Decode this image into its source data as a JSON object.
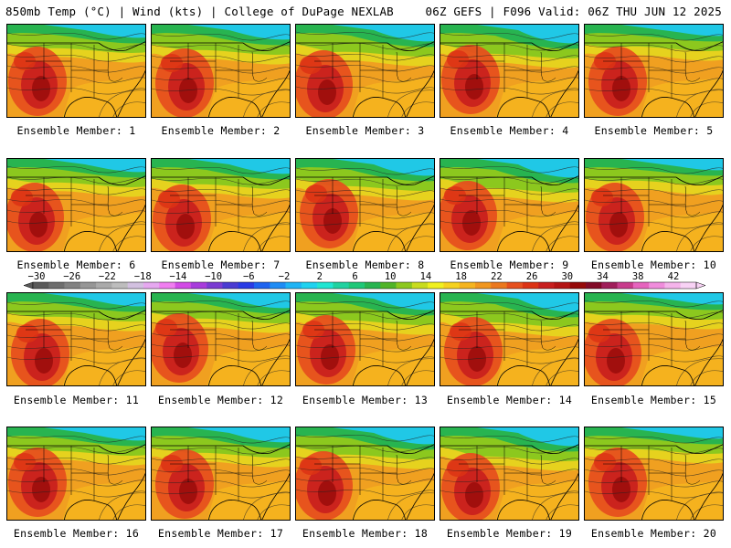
{
  "header": {
    "title_left": "850mb Temp (°C) | Wind (kts) | College of DuPage NEXLAB",
    "title_right": "06Z GEFS | F096 Valid: 06Z THU JUN 12 2025"
  },
  "members": [
    {
      "label": "Ensemble Member: 1"
    },
    {
      "label": "Ensemble Member: 2"
    },
    {
      "label": "Ensemble Member: 3"
    },
    {
      "label": "Ensemble Member: 4"
    },
    {
      "label": "Ensemble Member: 5"
    },
    {
      "label": "Ensemble Member: 6"
    },
    {
      "label": "Ensemble Member: 7"
    },
    {
      "label": "Ensemble Member: 8"
    },
    {
      "label": "Ensemble Member: 9"
    },
    {
      "label": "Ensemble Member: 10"
    },
    {
      "label": "Ensemble Member: 11"
    },
    {
      "label": "Ensemble Member: 12"
    },
    {
      "label": "Ensemble Member: 13"
    },
    {
      "label": "Ensemble Member: 14"
    },
    {
      "label": "Ensemble Member: 15"
    },
    {
      "label": "Ensemble Member: 16"
    },
    {
      "label": "Ensemble Member: 17"
    },
    {
      "label": "Ensemble Member: 18"
    },
    {
      "label": "Ensemble Member: 19"
    },
    {
      "label": "Ensemble Member: 20"
    }
  ],
  "colorbar": {
    "tick_labels": [
      "-30",
      "-26",
      "-22",
      "-18",
      "-14",
      "-10",
      "-6",
      "-2",
      "2",
      "6",
      "10",
      "14",
      "18",
      "22",
      "26",
      "30",
      "34",
      "38",
      "42"
    ],
    "colors": [
      "#5a5a5a",
      "#6e6e6e",
      "#828282",
      "#969696",
      "#aaaaaa",
      "#bdbdbd",
      "#d2c0e0",
      "#e6a8f0",
      "#f07ef0",
      "#d24be6",
      "#a83cdc",
      "#7a3cd2",
      "#4b3cd2",
      "#2a3ce6",
      "#1e64f0",
      "#1e8cf5",
      "#1eb4f5",
      "#1ed2f0",
      "#20e6d2",
      "#20d2a0",
      "#1ec878",
      "#28b450",
      "#50b428",
      "#8cc81e",
      "#c8dc1e",
      "#f0f01e",
      "#f5d21e",
      "#f5b41e",
      "#f0961e",
      "#eb781e",
      "#e6501e",
      "#dc3214",
      "#c81e1e",
      "#b41414",
      "#960a0a",
      "#820a28",
      "#a01e5a",
      "#c83c8c",
      "#e664be",
      "#f08cdc",
      "#f5b4eb",
      "#f8d2f5"
    ]
  }
}
